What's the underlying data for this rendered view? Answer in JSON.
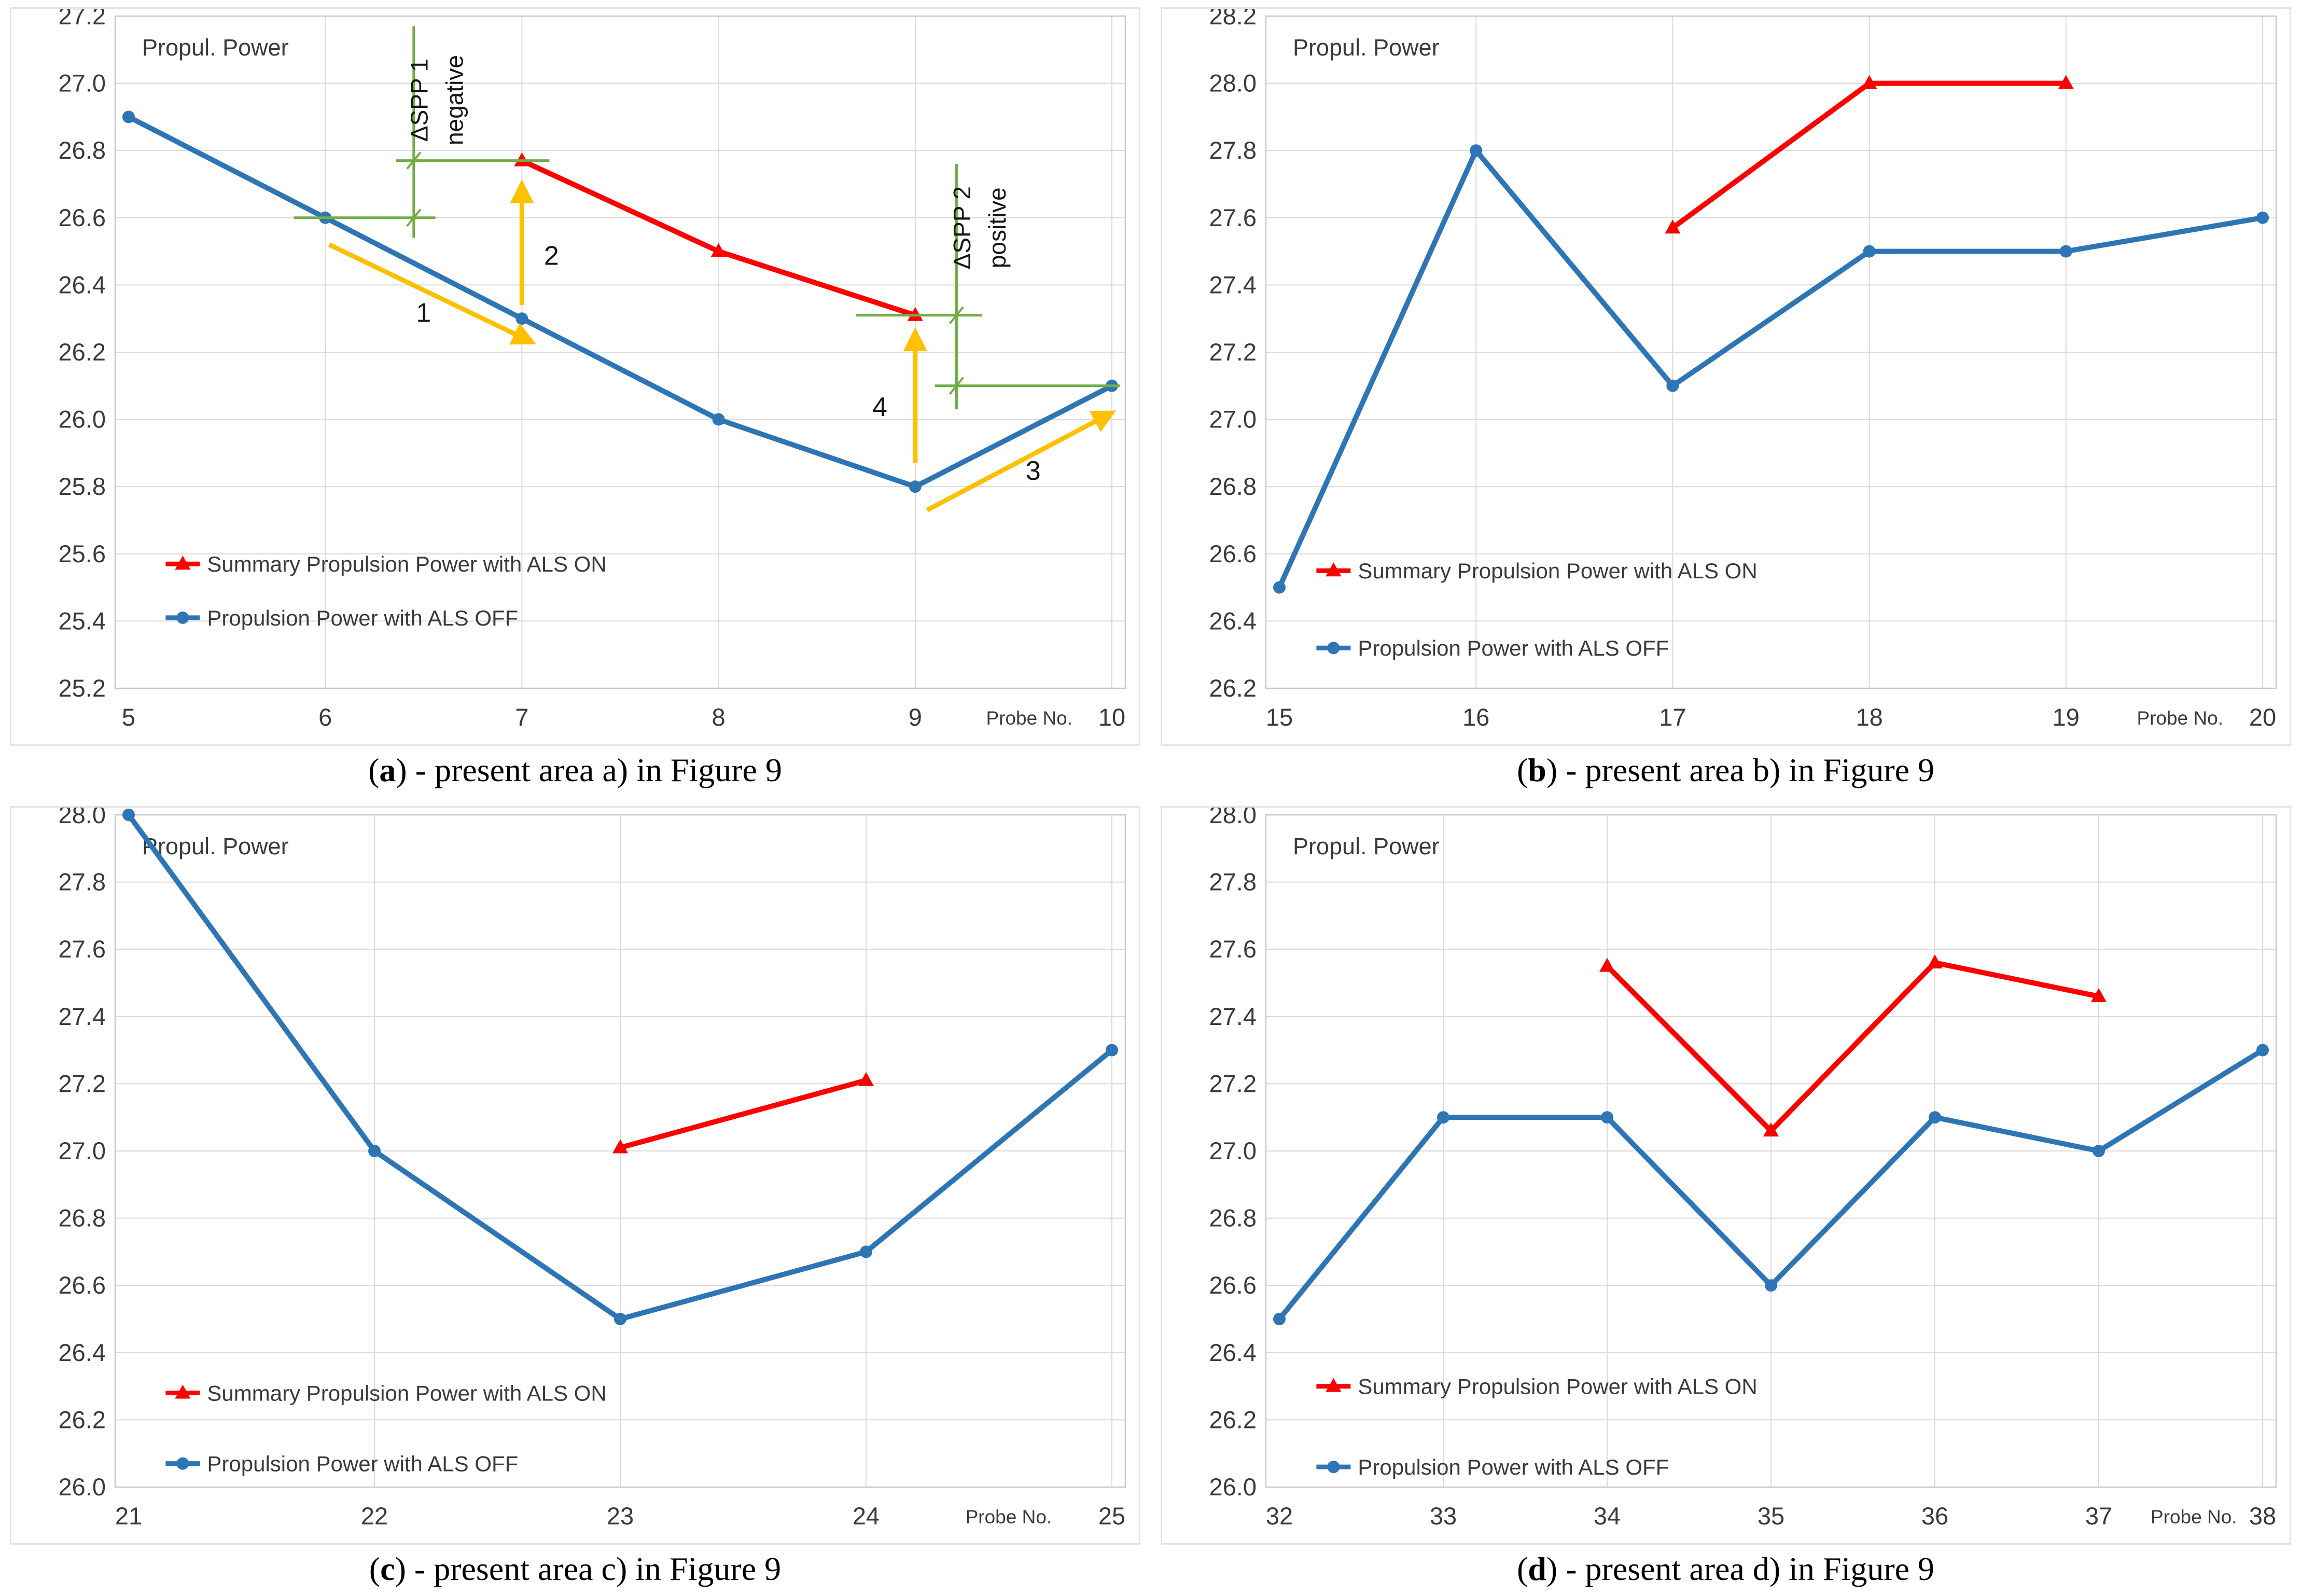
{
  "figure": {
    "inplot_label": "Propul. Power",
    "xaxis_label": "Probe No.",
    "legend": {
      "als_on_label": "Summary Propulsion Power with ALS ON",
      "als_off_label": "Propulsion Power with ALS OFF"
    },
    "colors": {
      "als_on": "#FF0000",
      "als_off": "#2E75B6",
      "annotation_green": "#70AD47",
      "annotation_yellow": "#FFC000",
      "grid": "#D9D9D9",
      "plot_border": "#C8C8C8",
      "text": "#3A3A3A",
      "annotation_text": "#161616"
    }
  },
  "chart_data": [
    {
      "id": "a",
      "type": "line",
      "inplot_label": "Propul. Power",
      "xlabel": "Probe No.",
      "categories": [
        5,
        6,
        7,
        8,
        9,
        10
      ],
      "ylim": [
        25.2,
        27.2
      ],
      "ytick_step": 0.2,
      "grid": true,
      "legend_position": "inside-lower-left",
      "series": [
        {
          "name": "Summary Propulsion Power with ALS ON",
          "color": "als_on",
          "marker": "triangle",
          "values": [
            null,
            null,
            26.77,
            26.5,
            26.31,
            null
          ]
        },
        {
          "name": "Propulsion Power with ALS OFF",
          "color": "als_off",
          "marker": "circle",
          "values": [
            26.9,
            26.6,
            26.3,
            26.0,
            25.8,
            26.1
          ]
        }
      ],
      "legend": {
        "x_frac": 0.05,
        "rows": [
          25.57,
          25.41
        ]
      },
      "annotations": {
        "green_h": [
          {
            "y": 26.77,
            "x1": 6.36,
            "x2": 7.14,
            "tx": 6.45
          },
          {
            "y": 26.6,
            "x1": 5.84,
            "x2": 6.56,
            "tx": 6.45
          },
          {
            "y": 26.31,
            "x1": 8.7,
            "x2": 9.34,
            "tx": 9.21
          },
          {
            "y": 26.1,
            "x1": 9.1,
            "x2": 10.04,
            "tx": 9.21
          }
        ],
        "green_v": [
          {
            "x": 6.45,
            "y1": 27.17,
            "y2": 26.54
          },
          {
            "x": 9.21,
            "y1": 26.76,
            "y2": 26.03
          }
        ],
        "rotated_texts": [
          {
            "x": 6.52,
            "y": 26.95,
            "text": "ΔSPP 1"
          },
          {
            "x": 6.7,
            "y": 26.95,
            "text": "negative"
          },
          {
            "x": 9.28,
            "y": 26.57,
            "text": "ΔSPP 2"
          },
          {
            "x": 9.46,
            "y": 26.57,
            "text": "positive"
          }
        ],
        "arrows": [
          {
            "x1": 6.02,
            "y1": 26.52,
            "x2": 7.05,
            "y2": 26.23,
            "label": "1",
            "lx": 6.5,
            "ly": 26.29
          },
          {
            "x1": 7.0,
            "y1": 26.34,
            "x2": 7.0,
            "y2": 26.7,
            "label": "2",
            "lx": 7.15,
            "ly": 26.46
          },
          {
            "x1": 9.06,
            "y1": 25.73,
            "x2": 10.0,
            "y2": 26.02,
            "label": "3",
            "lx": 9.6,
            "ly": 25.82
          },
          {
            "x1": 9.0,
            "y1": 25.87,
            "x2": 9.0,
            "y2": 26.26,
            "label": "4",
            "lx": 8.82,
            "ly": 26.01
          }
        ]
      },
      "caption": {
        "prefix": "(",
        "letter": "a",
        "rest": ") - present area a) in Figure 9"
      }
    },
    {
      "id": "b",
      "type": "line",
      "inplot_label": "Propul. Power",
      "xlabel": "Probe No.",
      "categories": [
        15,
        16,
        17,
        18,
        19,
        20
      ],
      "ylim": [
        26.2,
        28.2
      ],
      "ytick_step": 0.2,
      "grid": true,
      "legend_position": "inside-lower-left",
      "series": [
        {
          "name": "Summary Propulsion Power with ALS ON",
          "color": "als_on",
          "marker": "triangle",
          "values": [
            null,
            null,
            27.57,
            28.0,
            28.0,
            null
          ]
        },
        {
          "name": "Propulsion Power with ALS OFF",
          "color": "als_off",
          "marker": "circle",
          "values": [
            26.5,
            27.8,
            27.1,
            27.5,
            27.5,
            27.6
          ]
        }
      ],
      "legend": {
        "x_frac": 0.05,
        "rows": [
          26.55,
          26.32
        ]
      },
      "annotations": null,
      "caption": {
        "prefix": "(",
        "letter": "b",
        "rest": ") - present area b) in Figure 9"
      }
    },
    {
      "id": "c",
      "type": "line",
      "inplot_label": "Propul. Power",
      "xlabel": "Probe No.",
      "categories": [
        21,
        22,
        23,
        24,
        25
      ],
      "ylim": [
        26.0,
        28.0
      ],
      "ytick_step": 0.2,
      "grid": true,
      "legend_position": "inside-lower-left",
      "series": [
        {
          "name": "Summary Propulsion Power with ALS ON",
          "color": "als_on",
          "marker": "triangle",
          "values": [
            null,
            null,
            27.01,
            27.21,
            null
          ]
        },
        {
          "name": "Propulsion Power with ALS OFF",
          "color": "als_off",
          "marker": "circle",
          "values": [
            28.0,
            27.0,
            26.5,
            26.7,
            27.3
          ]
        }
      ],
      "legend": {
        "x_frac": 0.05,
        "rows": [
          26.28,
          26.07
        ]
      },
      "annotations": null,
      "caption": {
        "prefix": "(",
        "letter": "c",
        "rest": ") - present area c) in Figure 9"
      }
    },
    {
      "id": "d",
      "type": "line",
      "inplot_label": "Propul. Power",
      "xlabel": "Probe No.",
      "categories": [
        32,
        33,
        34,
        35,
        36,
        37,
        38
      ],
      "ylim": [
        26.0,
        28.0
      ],
      "ytick_step": 0.2,
      "grid": true,
      "legend_position": "inside-lower-left",
      "series": [
        {
          "name": "Summary Propulsion Power with ALS ON",
          "color": "als_on",
          "marker": "triangle",
          "values": [
            null,
            null,
            27.55,
            27.06,
            27.56,
            27.46,
            null
          ]
        },
        {
          "name": "Propulsion Power with ALS OFF",
          "color": "als_off",
          "marker": "circle",
          "values": [
            26.5,
            27.1,
            27.1,
            26.6,
            27.1,
            27.0,
            27.3
          ]
        }
      ],
      "legend": {
        "x_frac": 0.05,
        "rows": [
          26.3,
          26.06
        ]
      },
      "annotations": null,
      "caption": {
        "prefix": "(",
        "letter": "d",
        "rest": ") - present area d) in Figure 9"
      }
    }
  ]
}
